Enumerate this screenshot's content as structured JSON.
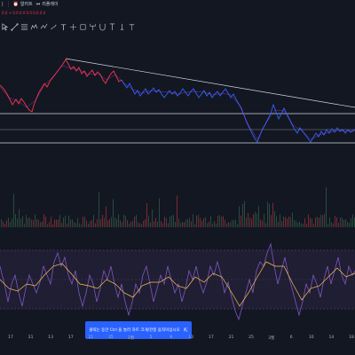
{
  "topbar": {
    "alert_label": "알러트",
    "replay_label": "리플레이"
  },
  "legend": {
    "text": "0.0 + 0.0 0.0 0.0 0.0 0.0"
  },
  "toolbar": {
    "tools": [
      "cursor-icon",
      "trendline-icon",
      "fib-icon",
      "pattern-icon",
      "measure-icon",
      "brush-icon",
      "text-icon",
      "prediction-icon",
      "position-icon",
      "pitchfork-icon",
      "magnet-icon",
      "timecycle-icon",
      "lock-icon",
      "anchor-icon"
    ]
  },
  "tooltip": {
    "text": "클릭는 동안 Ctrl 을 눌러 차트 크게/한층 움직이십시오",
    "icon": "expand-icon"
  },
  "xaxis": {
    "labels": [
      "17",
      "21",
      "13",
      "17",
      "21",
      "25",
      "2월",
      "5",
      "9",
      "13",
      "17",
      "21",
      "25",
      "3월",
      "6",
      "10",
      "14",
      "18"
    ]
  },
  "colors": {
    "background": "#131722",
    "price_up": "#f23645",
    "price_down": "#2962ff",
    "rsi_line": "#7e57c2",
    "rsi_signal": "#f6c34d",
    "rsi_band": "#2b2540"
  }
}
